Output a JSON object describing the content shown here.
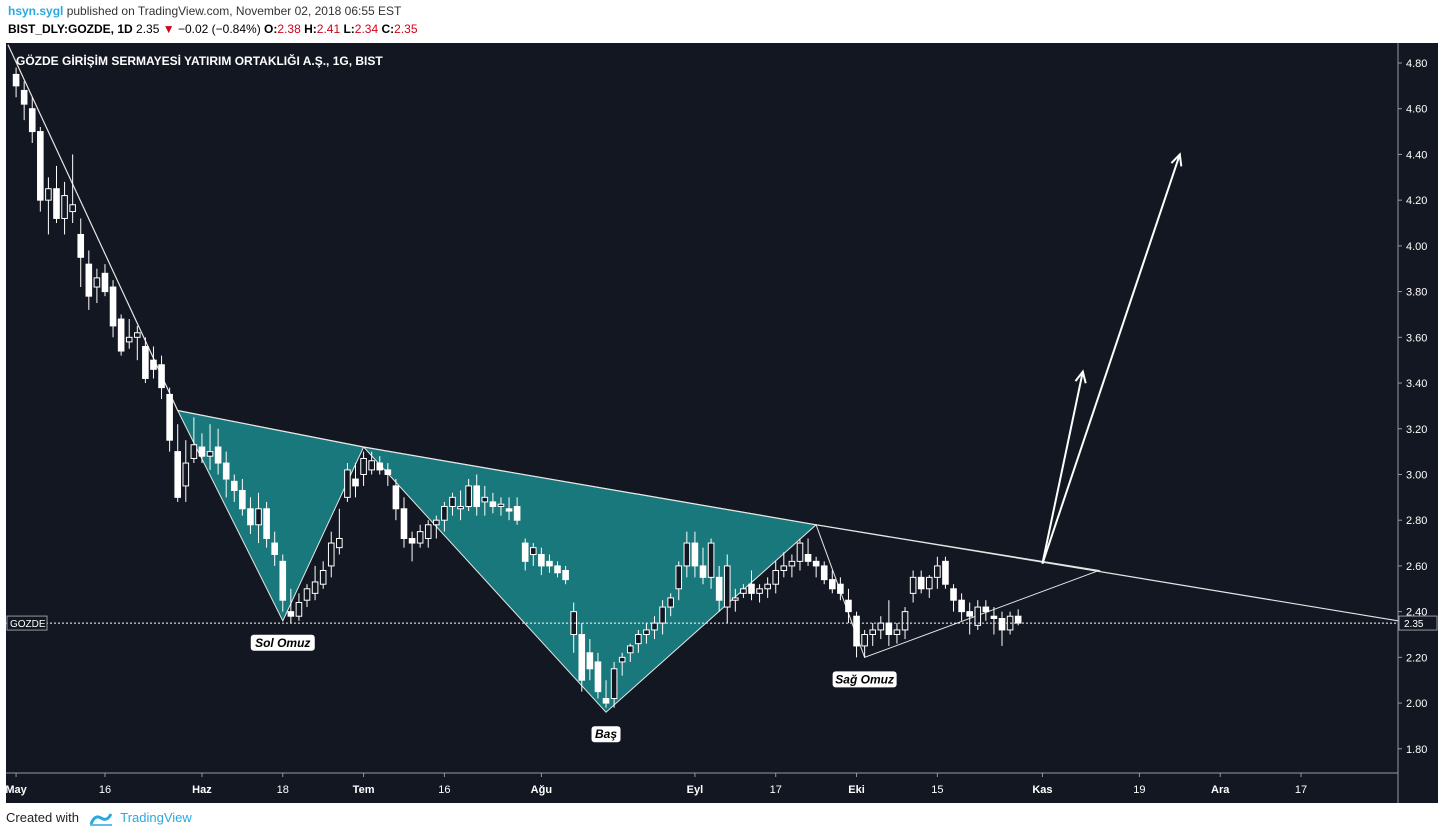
{
  "header": {
    "user": "hsyn.sygl",
    "published": "published on TradingView.com, November 02, 2018 06:55 EST",
    "symbol": "BIST_DLY:GOZDE, 1D",
    "last": "2.35",
    "arrow": "▼",
    "change": "−0.02 (−0.84%)",
    "o_label": "O:",
    "o_val": "2.38",
    "h_label": "H:",
    "h_val": "2.41",
    "l_label": "L:",
    "l_val": "2.34",
    "c_label": "C:",
    "c_val": "2.35"
  },
  "footer": {
    "created": "Created with",
    "brand": "TradingView"
  },
  "colors": {
    "background": "#131722",
    "candle": "#ffffff",
    "pattern_fill": "#1a9e9e",
    "down_arrow": "#d0021b",
    "brand": "#2aa9e0"
  },
  "chart_data": {
    "type": "candlestick",
    "title": "GÖZDE GİRİŞİM SERMAYESİ YATIRIM ORTAKLIĞI A.Ş., 1G, BIST",
    "symbol_label": "GOZDE",
    "last_price_label": "2.35",
    "last_price": 2.35,
    "ylim": [
      1.8,
      4.9
    ],
    "y_ticks": [
      "4.80",
      "4.60",
      "4.40",
      "4.20",
      "4.00",
      "3.80",
      "3.60",
      "3.40",
      "3.20",
      "3.00",
      "2.80",
      "2.60",
      "2.40",
      "2.20",
      "2.00",
      "1.80"
    ],
    "x_ticks": [
      {
        "label": "May",
        "bar": 1,
        "bold": true
      },
      {
        "label": "16",
        "bar": 12,
        "bold": false
      },
      {
        "label": "Haz",
        "bar": 24,
        "bold": true
      },
      {
        "label": "18",
        "bar": 34,
        "bold": false
      },
      {
        "label": "Tem",
        "bar": 44,
        "bold": true
      },
      {
        "label": "16",
        "bar": 54,
        "bold": false
      },
      {
        "label": "Ağu",
        "bar": 66,
        "bold": true
      },
      {
        "label": "Eyl",
        "bar": 85,
        "bold": true
      },
      {
        "label": "17",
        "bar": 95,
        "bold": false
      },
      {
        "label": "Eki",
        "bar": 105,
        "bold": true
      },
      {
        "label": "15",
        "bar": 115,
        "bold": false
      },
      {
        "label": "Kas",
        "bar": 128,
        "bold": true
      },
      {
        "label": "19",
        "bar": 140,
        "bold": false
      },
      {
        "label": "Ara",
        "bar": 150,
        "bold": true
      },
      {
        "label": "17",
        "bar": 160,
        "bold": false
      }
    ],
    "bar_range": [
      0,
      172
    ],
    "candles": [
      [
        1,
        4.75,
        4.78,
        4.65,
        4.7
      ],
      [
        2,
        4.68,
        4.72,
        4.55,
        4.62
      ],
      [
        3,
        4.6,
        4.65,
        4.45,
        4.5
      ],
      [
        4,
        4.5,
        4.52,
        4.15,
        4.2
      ],
      [
        5,
        4.2,
        4.3,
        4.05,
        4.25
      ],
      [
        6,
        4.25,
        4.35,
        4.1,
        4.12
      ],
      [
        7,
        4.12,
        4.28,
        4.05,
        4.22
      ],
      [
        8,
        4.15,
        4.4,
        4.1,
        4.18
      ],
      [
        9,
        4.05,
        4.12,
        3.82,
        3.95
      ],
      [
        10,
        3.92,
        3.98,
        3.72,
        3.78
      ],
      [
        11,
        3.82,
        3.9,
        3.75,
        3.86
      ],
      [
        12,
        3.88,
        3.92,
        3.78,
        3.8
      ],
      [
        13,
        3.82,
        3.85,
        3.6,
        3.65
      ],
      [
        14,
        3.68,
        3.7,
        3.52,
        3.54
      ],
      [
        15,
        3.58,
        3.68,
        3.55,
        3.6
      ],
      [
        16,
        3.6,
        3.65,
        3.5,
        3.62
      ],
      [
        17,
        3.56,
        3.6,
        3.4,
        3.42
      ],
      [
        18,
        3.5,
        3.56,
        3.42,
        3.46
      ],
      [
        19,
        3.48,
        3.52,
        3.33,
        3.38
      ],
      [
        20,
        3.35,
        3.38,
        3.1,
        3.15
      ],
      [
        21,
        3.1,
        3.22,
        2.88,
        2.9
      ],
      [
        22,
        2.95,
        3.15,
        2.88,
        3.05
      ],
      [
        23,
        3.07,
        3.25,
        3.05,
        3.13
      ],
      [
        24,
        3.12,
        3.18,
        3.05,
        3.08
      ],
      [
        25,
        3.08,
        3.22,
        3.02,
        3.1
      ],
      [
        26,
        3.12,
        3.2,
        3.0,
        3.05
      ],
      [
        27,
        3.05,
        3.1,
        2.9,
        2.98
      ],
      [
        28,
        2.97,
        3.0,
        2.88,
        2.93
      ],
      [
        29,
        2.93,
        2.98,
        2.82,
        2.85
      ],
      [
        30,
        2.85,
        2.9,
        2.74,
        2.78
      ],
      [
        31,
        2.78,
        2.92,
        2.7,
        2.85
      ],
      [
        32,
        2.85,
        2.88,
        2.68,
        2.72
      ],
      [
        33,
        2.7,
        2.75,
        2.6,
        2.65
      ],
      [
        34,
        2.62,
        2.65,
        2.4,
        2.45
      ],
      [
        35,
        2.4,
        2.5,
        2.35,
        2.38
      ],
      [
        36,
        2.38,
        2.48,
        2.36,
        2.44
      ],
      [
        37,
        2.45,
        2.52,
        2.42,
        2.5
      ],
      [
        38,
        2.48,
        2.6,
        2.45,
        2.53
      ],
      [
        39,
        2.52,
        2.62,
        2.5,
        2.58
      ],
      [
        40,
        2.6,
        2.75,
        2.55,
        2.7
      ],
      [
        41,
        2.68,
        2.85,
        2.65,
        2.72
      ],
      [
        42,
        2.9,
        3.05,
        2.88,
        3.02
      ],
      [
        43,
        2.98,
        3.05,
        2.9,
        2.95
      ],
      [
        44,
        3.0,
        3.1,
        2.95,
        3.07
      ],
      [
        45,
        3.02,
        3.1,
        3.0,
        3.06
      ],
      [
        46,
        3.05,
        3.08,
        3.0,
        3.02
      ],
      [
        47,
        3.02,
        3.05,
        2.95,
        3.0
      ],
      [
        48,
        2.95,
        2.98,
        2.8,
        2.85
      ],
      [
        49,
        2.85,
        2.9,
        2.68,
        2.72
      ],
      [
        50,
        2.72,
        2.75,
        2.62,
        2.7
      ],
      [
        51,
        2.7,
        2.78,
        2.68,
        2.75
      ],
      [
        52,
        2.72,
        2.8,
        2.68,
        2.78
      ],
      [
        53,
        2.78,
        2.82,
        2.72,
        2.8
      ],
      [
        54,
        2.8,
        2.88,
        2.75,
        2.86
      ],
      [
        55,
        2.86,
        2.92,
        2.82,
        2.9
      ],
      [
        56,
        2.85,
        2.93,
        2.8,
        2.86
      ],
      [
        57,
        2.86,
        2.98,
        2.84,
        2.95
      ],
      [
        58,
        2.95,
        3.0,
        2.82,
        2.86
      ],
      [
        59,
        2.88,
        2.95,
        2.82,
        2.9
      ],
      [
        60,
        2.88,
        2.92,
        2.83,
        2.86
      ],
      [
        61,
        2.86,
        2.9,
        2.82,
        2.87
      ],
      [
        62,
        2.85,
        2.9,
        2.8,
        2.84
      ],
      [
        63,
        2.86,
        2.9,
        2.78,
        2.8
      ],
      [
        64,
        2.7,
        2.72,
        2.58,
        2.62
      ],
      [
        65,
        2.65,
        2.7,
        2.6,
        2.68
      ],
      [
        66,
        2.65,
        2.68,
        2.56,
        2.6
      ],
      [
        67,
        2.62,
        2.65,
        2.57,
        2.6
      ],
      [
        68,
        2.6,
        2.62,
        2.55,
        2.57
      ],
      [
        69,
        2.58,
        2.6,
        2.52,
        2.54
      ],
      [
        70,
        2.3,
        2.44,
        2.22,
        2.4
      ],
      [
        71,
        2.3,
        2.35,
        2.05,
        2.1
      ],
      [
        72,
        2.22,
        2.28,
        2.1,
        2.15
      ],
      [
        73,
        2.18,
        2.22,
        2.02,
        2.05
      ],
      [
        74,
        2.02,
        2.1,
        1.98,
        2.0
      ],
      [
        75,
        2.02,
        2.18,
        1.98,
        2.15
      ],
      [
        76,
        2.18,
        2.22,
        2.12,
        2.2
      ],
      [
        77,
        2.22,
        2.26,
        2.18,
        2.25
      ],
      [
        78,
        2.26,
        2.32,
        2.22,
        2.3
      ],
      [
        79,
        2.3,
        2.35,
        2.26,
        2.32
      ],
      [
        80,
        2.32,
        2.38,
        2.28,
        2.35
      ],
      [
        81,
        2.35,
        2.45,
        2.3,
        2.42
      ],
      [
        82,
        2.42,
        2.48,
        2.38,
        2.46
      ],
      [
        83,
        2.5,
        2.62,
        2.45,
        2.6
      ],
      [
        84,
        2.6,
        2.75,
        2.55,
        2.7
      ],
      [
        85,
        2.7,
        2.75,
        2.55,
        2.6
      ],
      [
        86,
        2.6,
        2.68,
        2.52,
        2.55
      ],
      [
        87,
        2.55,
        2.72,
        2.5,
        2.7
      ],
      [
        88,
        2.55,
        2.6,
        2.4,
        2.45
      ],
      [
        89,
        2.42,
        2.65,
        2.35,
        2.6
      ],
      [
        90,
        2.45,
        2.5,
        2.4,
        2.46
      ],
      [
        91,
        2.48,
        2.52,
        2.46,
        2.5
      ],
      [
        92,
        2.52,
        2.58,
        2.45,
        2.48
      ],
      [
        93,
        2.48,
        2.52,
        2.44,
        2.5
      ],
      [
        94,
        2.5,
        2.55,
        2.46,
        2.52
      ],
      [
        95,
        2.52,
        2.62,
        2.48,
        2.58
      ],
      [
        96,
        2.58,
        2.66,
        2.55,
        2.6
      ],
      [
        97,
        2.6,
        2.65,
        2.55,
        2.62
      ],
      [
        98,
        2.62,
        2.72,
        2.58,
        2.7
      ],
      [
        99,
        2.65,
        2.72,
        2.6,
        2.62
      ],
      [
        100,
        2.62,
        2.64,
        2.55,
        2.6
      ],
      [
        101,
        2.6,
        2.62,
        2.52,
        2.54
      ],
      [
        102,
        2.54,
        2.58,
        2.48,
        2.5
      ],
      [
        103,
        2.52,
        2.55,
        2.45,
        2.48
      ],
      [
        104,
        2.45,
        2.5,
        2.35,
        2.4
      ],
      [
        105,
        2.38,
        2.4,
        2.2,
        2.25
      ],
      [
        106,
        2.25,
        2.32,
        2.2,
        2.3
      ],
      [
        107,
        2.3,
        2.35,
        2.25,
        2.32
      ],
      [
        108,
        2.32,
        2.38,
        2.28,
        2.35
      ],
      [
        109,
        2.35,
        2.45,
        2.25,
        2.3
      ],
      [
        110,
        2.3,
        2.35,
        2.26,
        2.32
      ],
      [
        111,
        2.32,
        2.42,
        2.28,
        2.4
      ],
      [
        112,
        2.48,
        2.58,
        2.44,
        2.55
      ],
      [
        113,
        2.55,
        2.58,
        2.48,
        2.5
      ],
      [
        114,
        2.5,
        2.56,
        2.46,
        2.55
      ],
      [
        115,
        2.55,
        2.64,
        2.5,
        2.6
      ],
      [
        116,
        2.62,
        2.64,
        2.5,
        2.52
      ],
      [
        117,
        2.5,
        2.52,
        2.4,
        2.45
      ],
      [
        118,
        2.45,
        2.48,
        2.36,
        2.4
      ],
      [
        119,
        2.4,
        2.44,
        2.3,
        2.38
      ],
      [
        120,
        2.34,
        2.45,
        2.32,
        2.42
      ],
      [
        121,
        2.42,
        2.45,
        2.36,
        2.4
      ],
      [
        122,
        2.38,
        2.42,
        2.3,
        2.37
      ],
      [
        123,
        2.37,
        2.4,
        2.25,
        2.32
      ],
      [
        124,
        2.32,
        2.4,
        2.3,
        2.38
      ],
      [
        125,
        2.38,
        2.41,
        2.34,
        2.35
      ]
    ],
    "pattern": {
      "neckline": [
        [
          21,
          3.28
        ],
        [
          44,
          3.12
        ],
        [
          100,
          2.78
        ],
        [
          172,
          2.36
        ]
      ],
      "sol_omuz": [
        [
          21,
          3.28
        ],
        [
          34,
          2.36
        ],
        [
          44,
          3.12
        ]
      ],
      "bas": [
        [
          44,
          3.12
        ],
        [
          74,
          1.96
        ],
        [
          100,
          2.78
        ]
      ],
      "sag_omuz": [
        [
          100,
          2.78
        ],
        [
          106,
          2.2
        ],
        [
          135,
          2.58
        ]
      ],
      "downtrend": [
        [
          0,
          4.88
        ],
        [
          21,
          3.28
        ]
      ],
      "labels": [
        {
          "text": "Sol Omuz",
          "bar": 34,
          "price": 2.36
        },
        {
          "text": "Baş",
          "bar": 74,
          "price": 1.96
        },
        {
          "text": "Sağ Omuz",
          "bar": 106,
          "price": 2.2
        }
      ],
      "arrows": [
        {
          "from": [
            128,
            2.61
          ],
          "to": [
            133,
            3.45
          ]
        },
        {
          "from": [
            128,
            2.61
          ],
          "to": [
            145,
            4.4
          ]
        }
      ]
    }
  }
}
